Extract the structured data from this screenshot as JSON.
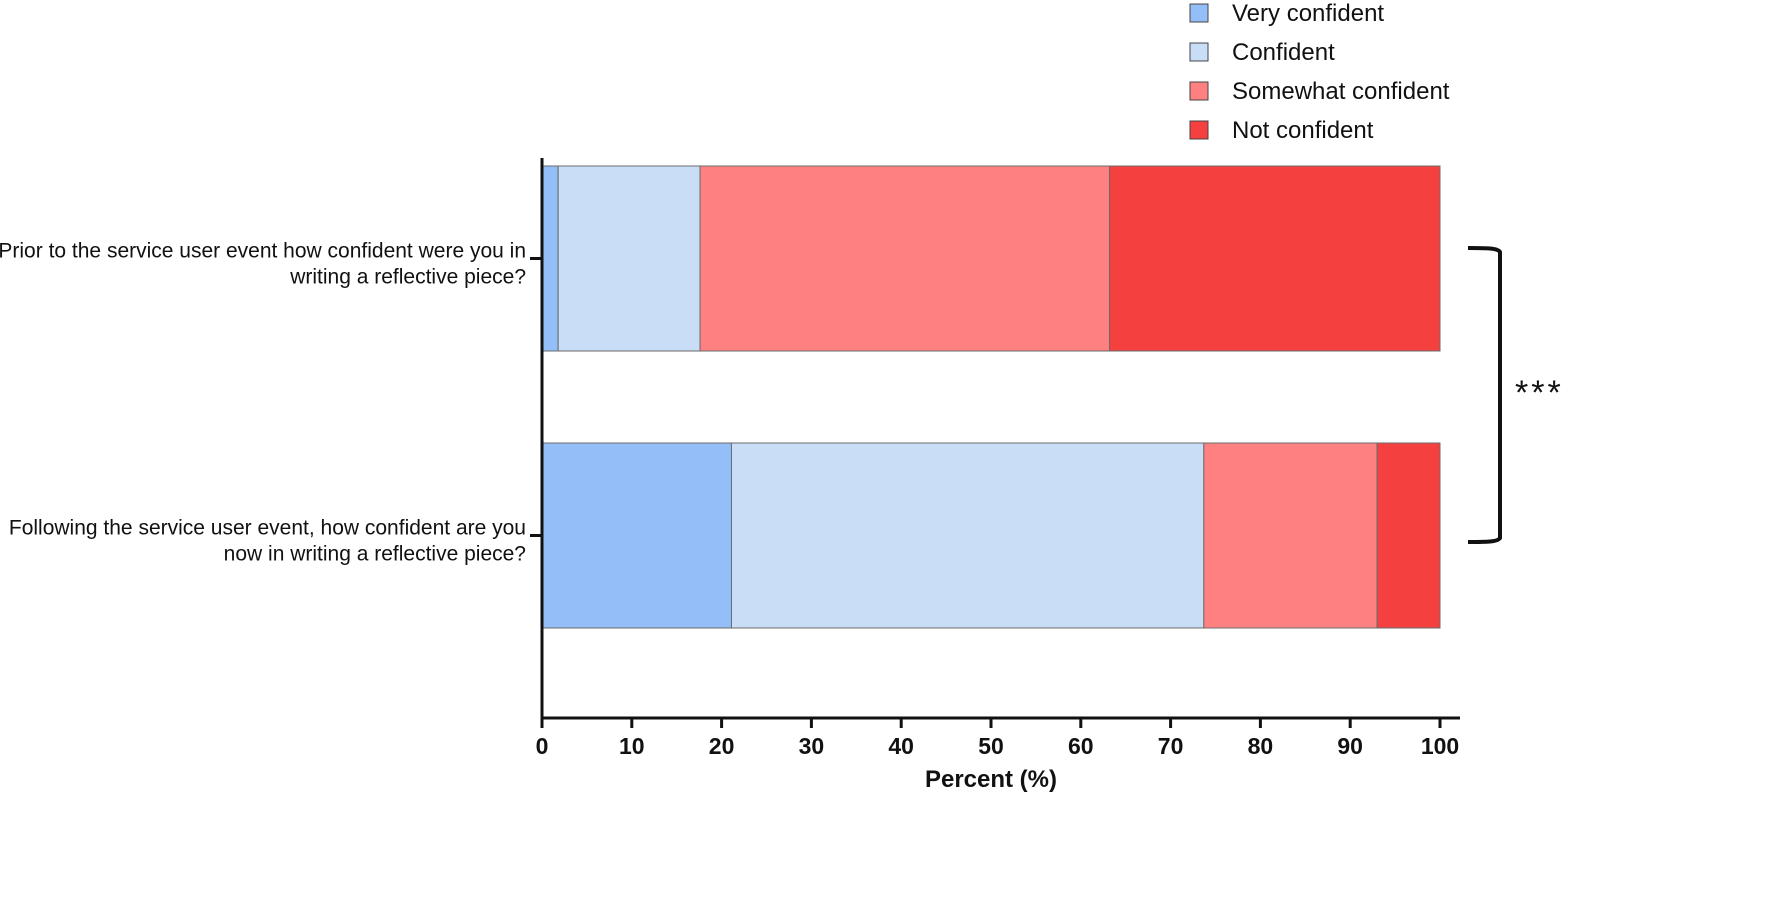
{
  "chart_data": {
    "type": "bar",
    "orientation": "horizontal",
    "stacked": true,
    "categories": [
      [
        "Prior to the service user event how confident were you in",
        "writing a reflective piece?"
      ],
      [
        "Following the service user event, how confident are you",
        "now in writing a reflective piece?"
      ]
    ],
    "series": [
      {
        "name": "Very confident",
        "color": "#93bef8",
        "values": [
          1.8,
          21.1
        ]
      },
      {
        "name": "Confident",
        "color": "#c9ddf7",
        "values": [
          15.8,
          52.6
        ]
      },
      {
        "name": "Somewhat confident",
        "color": "#fe8080",
        "values": [
          45.6,
          19.3
        ]
      },
      {
        "name": "Not confident",
        "color": "#f54040",
        "values": [
          36.8,
          7.0
        ]
      }
    ],
    "xlabel": "Percent (%)",
    "xlim": [
      0,
      100
    ],
    "xticks": [
      "0",
      "10",
      "20",
      "30",
      "40",
      "50",
      "60",
      "70",
      "80",
      "90",
      "100"
    ],
    "legend_position": "top-right",
    "significance": "***"
  }
}
